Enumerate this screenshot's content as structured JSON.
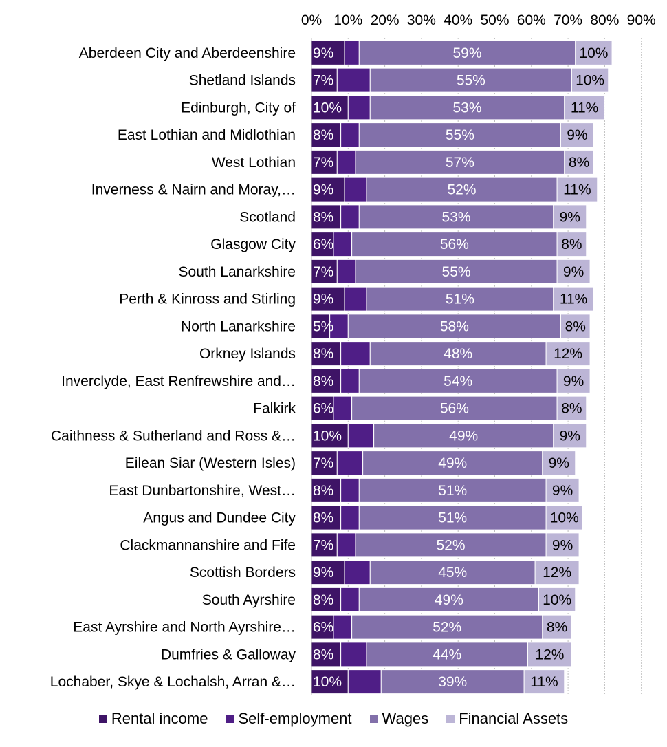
{
  "chart_data": {
    "type": "bar",
    "orientation": "horizontal",
    "stacked": true,
    "categories": [
      "Aberdeen City and Aberdeenshire",
      "Shetland Islands",
      "Edinburgh, City of",
      "East Lothian and Midlothian",
      "West Lothian",
      "Inverness & Nairn and Moray,…",
      "Scotland",
      "Glasgow City",
      "South Lanarkshire",
      "Perth & Kinross and Stirling",
      "North Lanarkshire",
      "Orkney Islands",
      "Inverclyde, East Renfrewshire and…",
      "Falkirk",
      "Caithness & Sutherland and Ross &…",
      "Eilean Siar (Western Isles)",
      "East Dunbartonshire, West…",
      "Angus and Dundee City",
      "Clackmannanshire and Fife",
      "Scottish Borders",
      "South Ayrshire",
      "East Ayrshire and North Ayrshire…",
      "Dumfries & Galloway",
      "Lochaber, Skye & Lochalsh, Arran &…"
    ],
    "series": [
      {
        "name": "Rental income",
        "color": "#3e1466",
        "values": [
          9,
          7,
          10,
          8,
          7,
          9,
          8,
          6,
          7,
          9,
          5,
          8,
          8,
          6,
          10,
          7,
          8,
          8,
          7,
          9,
          8,
          6,
          8,
          10
        ],
        "labels": [
          "9%",
          "7%",
          "10%",
          "8%",
          "7%",
          "9%",
          "8%",
          "6%",
          "7%",
          "9%",
          "5%",
          "8%",
          "8%",
          "6%",
          "10%",
          "7%",
          "8%",
          "8%",
          "7%",
          "9%",
          "8%",
          "6%",
          "8%",
          "10%"
        ]
      },
      {
        "name": "Self-employment",
        "color": "#4f1e86",
        "values": [
          4,
          9,
          6,
          5,
          5,
          6,
          5,
          5,
          5,
          6,
          5,
          8,
          5,
          5,
          7,
          7,
          5,
          5,
          5,
          7,
          5,
          5,
          7,
          9
        ],
        "labels": []
      },
      {
        "name": "Wages",
        "color": "#8270aa",
        "values": [
          59,
          55,
          53,
          55,
          57,
          52,
          53,
          56,
          55,
          51,
          58,
          48,
          54,
          56,
          49,
          49,
          51,
          51,
          52,
          45,
          49,
          52,
          44,
          39
        ],
        "labels": [
          "59%",
          "55%",
          "53%",
          "55%",
          "57%",
          "52%",
          "53%",
          "56%",
          "55%",
          "51%",
          "58%",
          "48%",
          "54%",
          "56%",
          "49%",
          "49%",
          "51%",
          "51%",
          "52%",
          "45%",
          "49%",
          "52%",
          "44%",
          "39%"
        ]
      },
      {
        "name": "Financial Assets",
        "color": "#bcb5d6",
        "values": [
          10,
          10,
          11,
          9,
          8,
          11,
          9,
          8,
          9,
          11,
          8,
          12,
          9,
          8,
          9,
          9,
          9,
          10,
          9,
          12,
          10,
          8,
          12,
          11
        ],
        "labels": [
          "10%",
          "10%",
          "11%",
          "9%",
          "8%",
          "11%",
          "9%",
          "8%",
          "9%",
          "11%",
          "8%",
          "12%",
          "9%",
          "8%",
          "9%",
          "9%",
          "9%",
          "10%",
          "9%",
          "12%",
          "10%",
          "8%",
          "12%",
          "11%"
        ]
      }
    ],
    "xlim": [
      0,
      90
    ],
    "xticks": [
      "0%",
      "10%",
      "20%",
      "30%",
      "40%",
      "50%",
      "60%",
      "70%",
      "80%",
      "90%"
    ],
    "grid": "vertical-dashed",
    "legend_position": "bottom",
    "title": "",
    "xlabel": "",
    "ylabel": ""
  }
}
